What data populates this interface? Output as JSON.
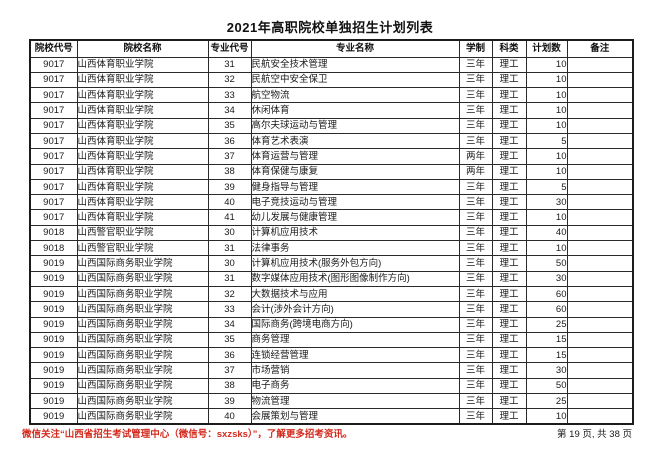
{
  "page": {
    "title": "2021年高职院校单独招生计划列表",
    "footer_notice": "微信关注“山西省招生考试管理中心（微信号：sxzsks）”，了解更多招考资讯。",
    "page_info": "第 19 页, 共 38 页"
  },
  "colors": {
    "notice_red": "#d42a1e",
    "border": "#2a2a2a"
  },
  "table": {
    "headers": [
      "院校代号",
      "院校名称",
      "专业代号",
      "专业名称",
      "学制",
      "科类",
      "计划数",
      "备注"
    ],
    "rows": [
      [
        "9017",
        "山西体育职业学院",
        "31",
        "民航安全技术管理",
        "三年",
        "理工",
        "10",
        ""
      ],
      [
        "9017",
        "山西体育职业学院",
        "32",
        "民航空中安全保卫",
        "三年",
        "理工",
        "10",
        ""
      ],
      [
        "9017",
        "山西体育职业学院",
        "33",
        "航空物流",
        "三年",
        "理工",
        "10",
        ""
      ],
      [
        "9017",
        "山西体育职业学院",
        "34",
        "休闲体育",
        "三年",
        "理工",
        "10",
        ""
      ],
      [
        "9017",
        "山西体育职业学院",
        "35",
        "高尔夫球运动与管理",
        "三年",
        "理工",
        "10",
        ""
      ],
      [
        "9017",
        "山西体育职业学院",
        "36",
        "体育艺术表演",
        "三年",
        "理工",
        "5",
        ""
      ],
      [
        "9017",
        "山西体育职业学院",
        "37",
        "体育运营与管理",
        "两年",
        "理工",
        "10",
        ""
      ],
      [
        "9017",
        "山西体育职业学院",
        "38",
        "体育保健与康复",
        "两年",
        "理工",
        "10",
        ""
      ],
      [
        "9017",
        "山西体育职业学院",
        "39",
        "健身指导与管理",
        "三年",
        "理工",
        "5",
        ""
      ],
      [
        "9017",
        "山西体育职业学院",
        "40",
        "电子竞技运动与管理",
        "三年",
        "理工",
        "30",
        ""
      ],
      [
        "9017",
        "山西体育职业学院",
        "41",
        "幼儿发展与健康管理",
        "三年",
        "理工",
        "10",
        ""
      ],
      [
        "9018",
        "山西警官职业学院",
        "30",
        "计算机应用技术",
        "三年",
        "理工",
        "40",
        ""
      ],
      [
        "9018",
        "山西警官职业学院",
        "31",
        "法律事务",
        "三年",
        "理工",
        "10",
        ""
      ],
      [
        "9019",
        "山西国际商务职业学院",
        "30",
        "计算机应用技术(服务外包方向)",
        "三年",
        "理工",
        "50",
        ""
      ],
      [
        "9019",
        "山西国际商务职业学院",
        "31",
        "数字媒体应用技术(图形图像制作方向)",
        "三年",
        "理工",
        "30",
        ""
      ],
      [
        "9019",
        "山西国际商务职业学院",
        "32",
        "大数据技术与应用",
        "三年",
        "理工",
        "60",
        ""
      ],
      [
        "9019",
        "山西国际商务职业学院",
        "33",
        "会计(涉外会计方向)",
        "三年",
        "理工",
        "60",
        ""
      ],
      [
        "9019",
        "山西国际商务职业学院",
        "34",
        "国际商务(跨境电商方向)",
        "三年",
        "理工",
        "25",
        ""
      ],
      [
        "9019",
        "山西国际商务职业学院",
        "35",
        "商务管理",
        "三年",
        "理工",
        "15",
        ""
      ],
      [
        "9019",
        "山西国际商务职业学院",
        "36",
        "连锁经营管理",
        "三年",
        "理工",
        "15",
        ""
      ],
      [
        "9019",
        "山西国际商务职业学院",
        "37",
        "市场营销",
        "三年",
        "理工",
        "30",
        ""
      ],
      [
        "9019",
        "山西国际商务职业学院",
        "38",
        "电子商务",
        "三年",
        "理工",
        "50",
        ""
      ],
      [
        "9019",
        "山西国际商务职业学院",
        "39",
        "物流管理",
        "三年",
        "理工",
        "25",
        ""
      ],
      [
        "9019",
        "山西国际商务职业学院",
        "40",
        "会展策划与管理",
        "三年",
        "理工",
        "10",
        ""
      ]
    ]
  }
}
